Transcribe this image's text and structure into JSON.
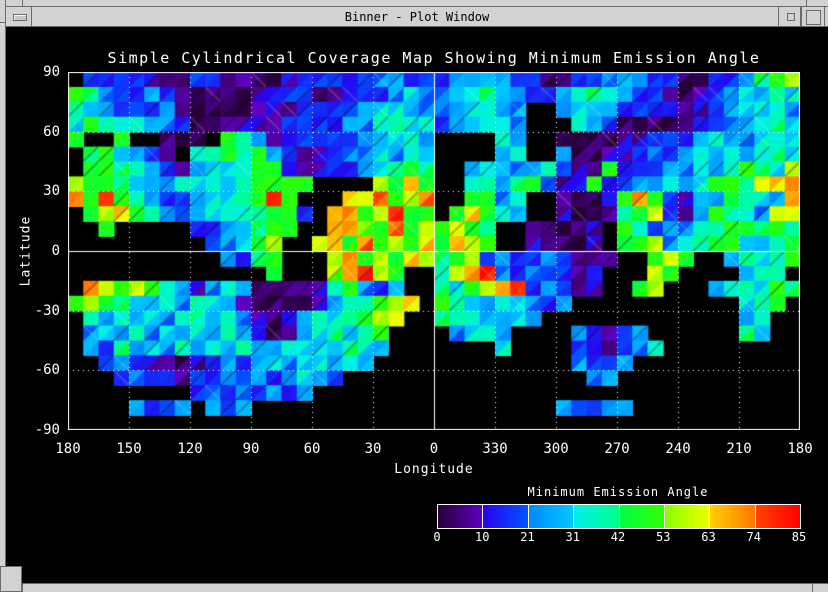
{
  "window": {
    "title": "Binner - Plot Window",
    "chrome_color": "#d2d2d2",
    "client_background": "#000000"
  },
  "chart": {
    "title": "Simple Cylindrical Coverage Map Showing Minimum Emission Angle",
    "xlabel": "Longitude",
    "ylabel": "Latitude",
    "text_color": "#ffffff"
  },
  "colorbar": {
    "title": "Minimum Emission Angle",
    "labels": [
      "0",
      "10",
      "21",
      "31",
      "42",
      "53",
      "63",
      "74",
      "85"
    ]
  },
  "chart_data": {
    "type": "heatmap",
    "title": "Simple Cylindrical Coverage Map Showing Minimum Emission Angle",
    "xlabel": "Longitude",
    "ylabel": "Latitude",
    "x_tick_labels": [
      "180",
      "150",
      "120",
      "90",
      "60",
      "30",
      "0",
      "330",
      "300",
      "270",
      "240",
      "210",
      "180"
    ],
    "y_tick_labels": [
      "90",
      "60",
      "30",
      "0",
      "-30",
      "-60",
      "-90"
    ],
    "value_label": "Minimum Emission Angle",
    "value_range": [
      0,
      85
    ],
    "colorbar_boundaries": [
      0,
      10,
      21,
      31,
      42,
      53,
      63,
      74,
      85
    ],
    "colormap_segments": [
      {
        "from": 0,
        "to": 10,
        "start": "#270038",
        "end": "#5f00c0"
      },
      {
        "from": 10,
        "to": 21,
        "start": "#2a00ee",
        "end": "#0055ff"
      },
      {
        "from": 21,
        "to": 31,
        "start": "#0088ff",
        "end": "#00c8ff"
      },
      {
        "from": 31,
        "to": 42,
        "start": "#00eeee",
        "end": "#00ff88"
      },
      {
        "from": 42,
        "to": 53,
        "start": "#00ff44",
        "end": "#33ff00"
      },
      {
        "from": 53,
        "to": 63,
        "start": "#88ff00",
        "end": "#eeff00"
      },
      {
        "from": 63,
        "to": 74,
        "start": "#ffd000",
        "end": "#ff7700"
      },
      {
        "from": 74,
        "to": 85,
        "start": "#ff4400",
        "end": "#ff0000"
      }
    ],
    "no_data_color": "#000000",
    "grid_cell_deg": 7.5,
    "grid_note": "48x24 coarse grid, lon 180E..0..180W left-to-right, lat 90..-90 top-to-bottom; '.'=no coverage",
    "palette_values": {
      "P": 3,
      "p": 9,
      "B": 16,
      "b": 25,
      "C": 33,
      "c": 39,
      "G": 48,
      "g": 58,
      "Y": 65,
      "O": 71,
      "R": 81
    },
    "grid_rows": [
      ".BBBBpPPBBppPPpBBBBBbbBBBbbCbBBPPBBbbbBBPPBBbcGg",
      "GcbBBbBPPPPPppBBPPBBBbCbbCCcCbBBbCcCbBBpPpBbCbcC",
      "cCbBBBbpPPPPpppBBBBbCCbbbbCCbb..bCCbBBBBppBbCCCb",
      "CGcCCbbBPPppppBBBBbbCcCCBbCCCb...CbBPPPPpBBbbCcC",
      "G..G..PPP.GcbppBBBBbbCCb....Cb..PPPPppBBBbCbbCCC",
      ".cGCbBp.CcGcGbBPpBbbCbCC....bC..bPPppBbBbCbCbCcC",
      ".GGcCbBpbCCCGGpppBBbCcGc..bCCbbcBppGpBBbbCbCGcCg",
      "gGGcCbbCCCCcGGGG....gGYG..CcbcGBppGpBbbCbCGGcgYO",
      "OGRGcbBBbCCcGRG...YgOGgO..GGbC..pPPpGOGBpbbGcCbY",
      ".GgYGcbBbCCCcGGB.YOGgRGG.GYGCb..pPPpcGgBpbGcCbgY",
      "..G.....BBbCcGG..YOgGOGgGgGc..pPPPp.GcBbbCcGGcGc",
      ".........BbCGg..gYGOGgGYGYgG..pPPPp.cGgbCcGGCbcG",
      "..........bBcG...gOGgGYgcGgBbBBbBpPp..GgG..bcCcG",
      ".............G...gORgG..CgORbBbBBpp...gG....bCc.",
      ".OgGgGcbpbCbPPPPpcGbBb..cCGgORBbBpp..Gg...bCcCGc",
      "GgGcCbCbcCbpPPPPpbCcGgY.GcCbCCbBb...........CcG.",
      ".cbCbCbCcbCbpPpbcCcGgY..cCCbbCb.............bC..",
      ".bCbcbCbCbcbpPpbCcCcG....bCCb....bBpBb......cC..",
      ".bBcbCbcbCbcbbCCCCcCb.......C....BppBbC.........",
      "..BbBppPpBbBbCbCCbCb.............bBBb...........",
      "...BbBBpBBbBbBbCbB................bb............",
      "........BbBbBbBb................................",
      "....bBBb.bBb....................bBBbb...........",
      "................................................"
    ]
  }
}
